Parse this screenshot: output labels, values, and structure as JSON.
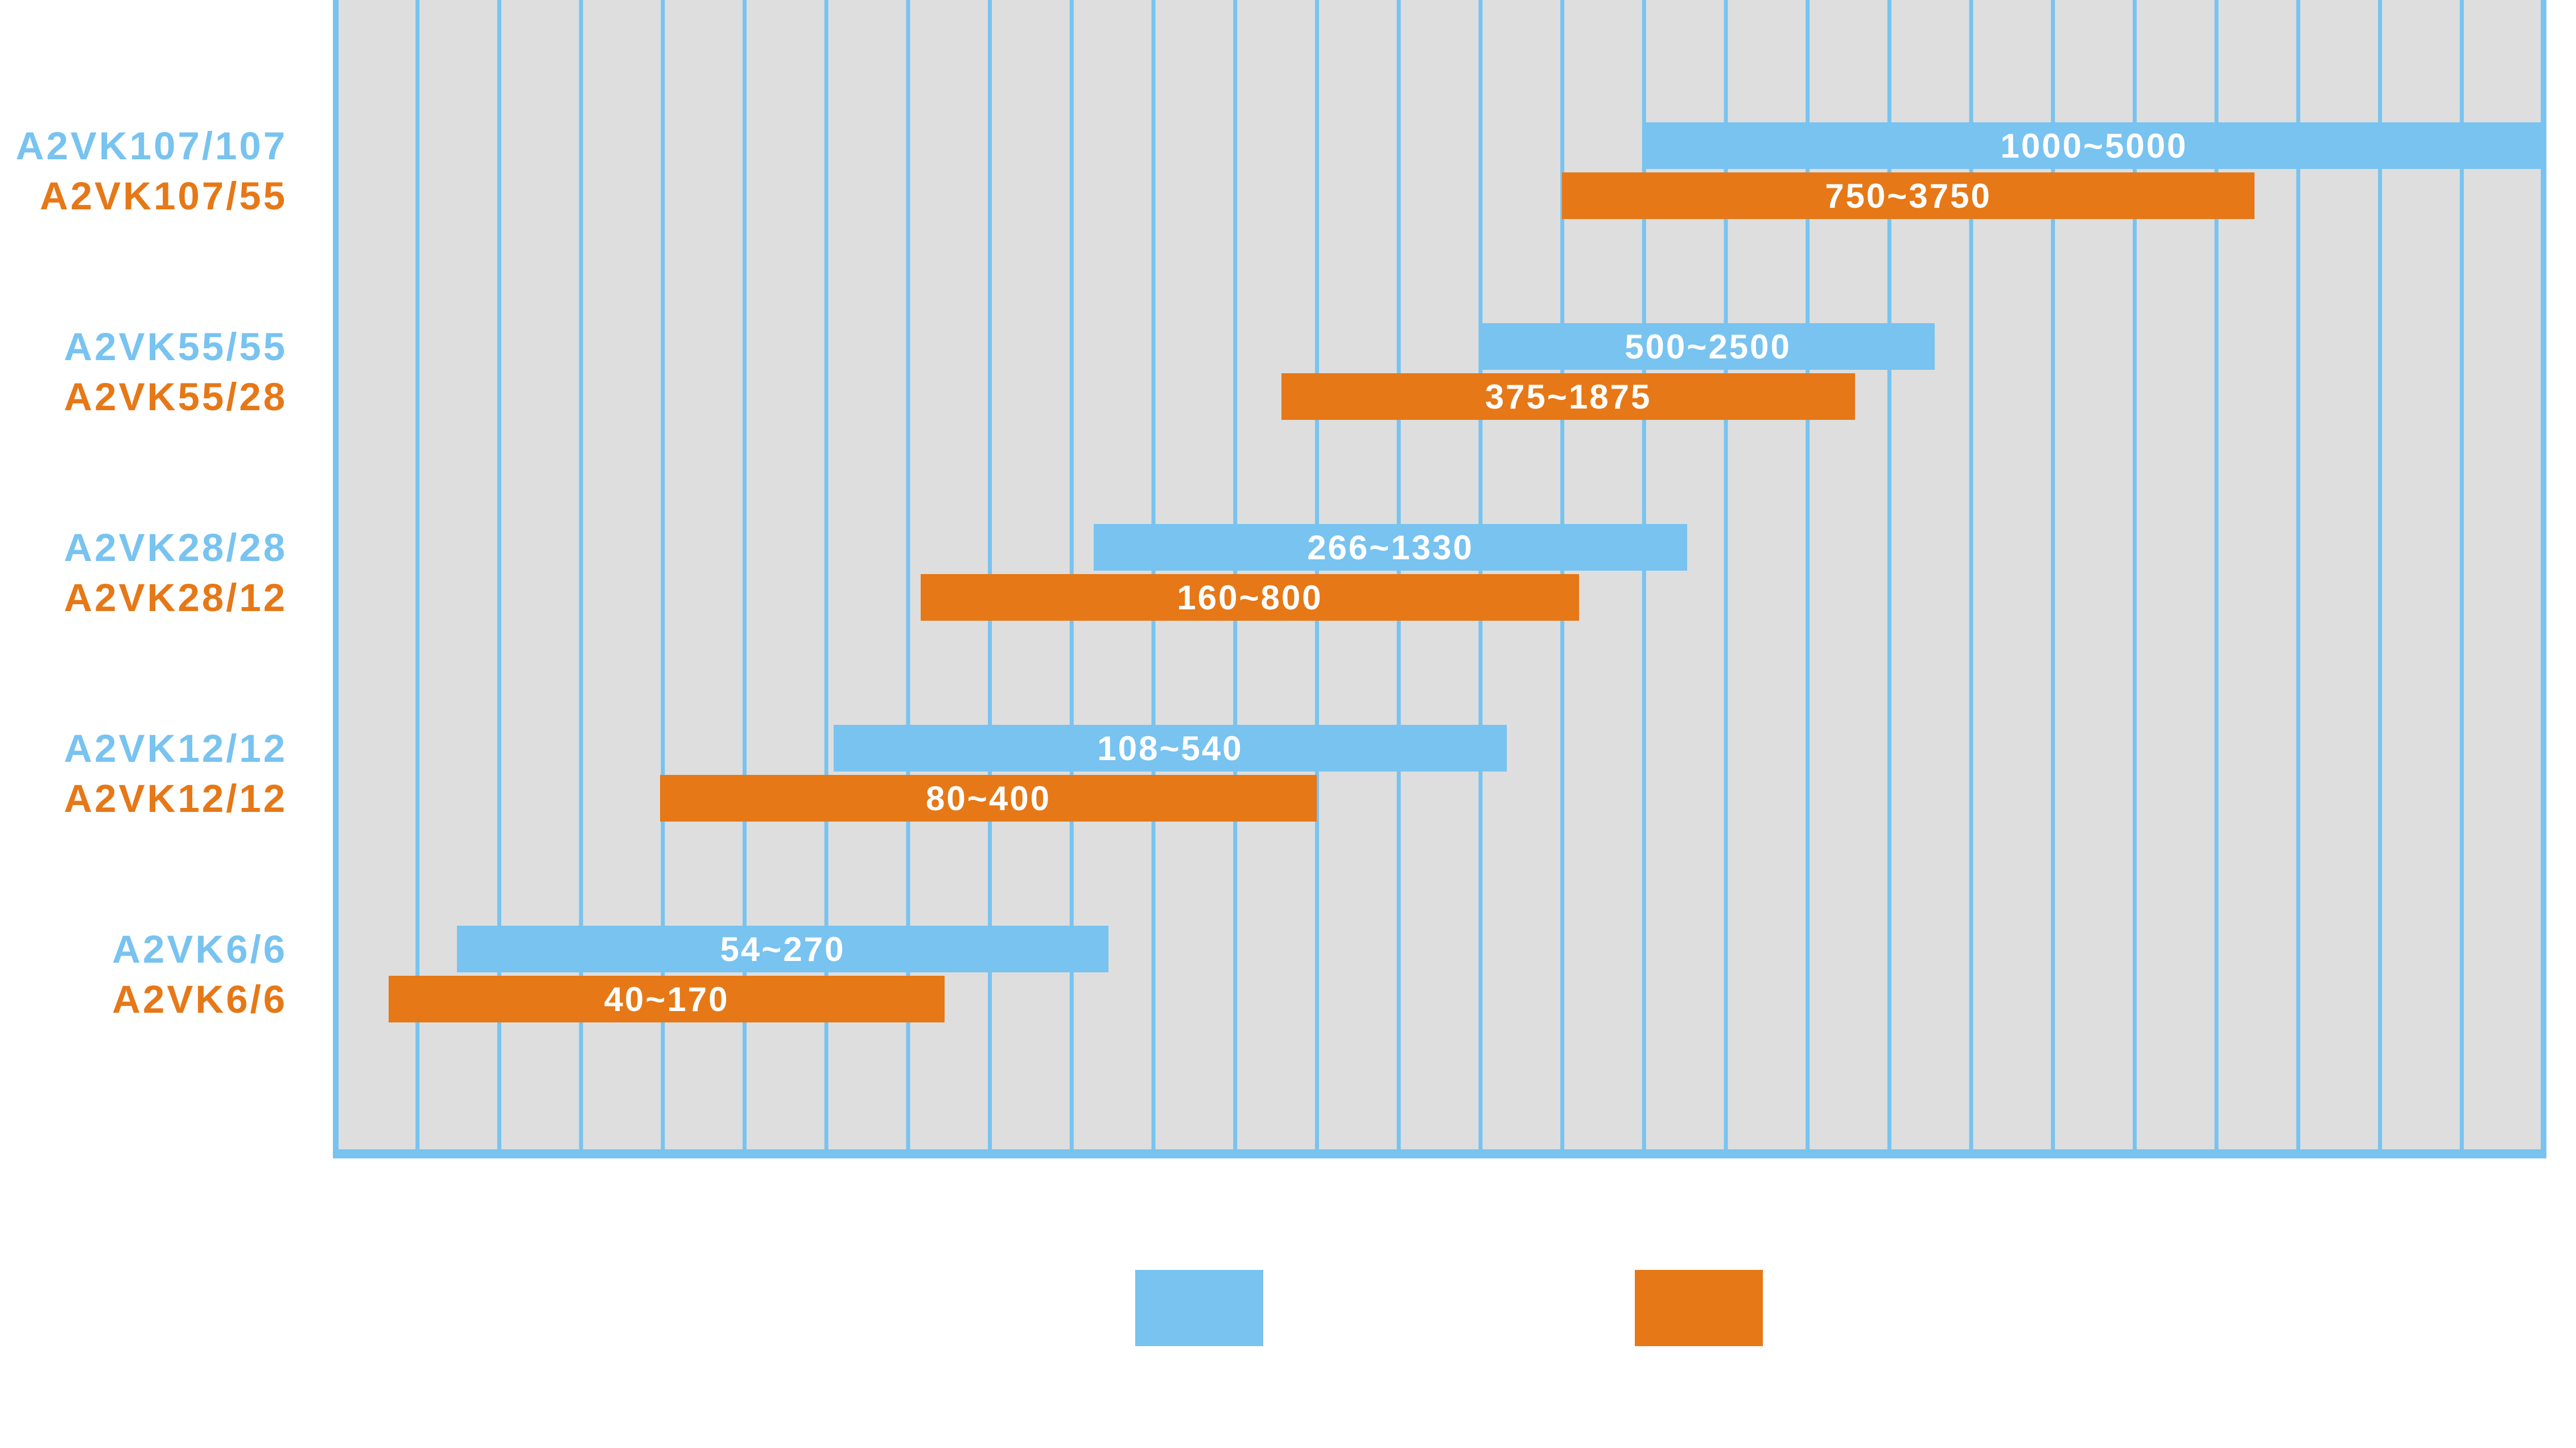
{
  "chart_data": {
    "type": "bar",
    "orientation": "horizontal-range",
    "grid": true,
    "colors": {
      "blue": "#78C3F0",
      "orange": "#E67817",
      "plot_background": "#DEDEDE",
      "grid_line": "#78C3F0"
    },
    "legend": {
      "placement": "bottom-center",
      "entries": [
        {
          "color": "#78C3F0",
          "label": ""
        },
        {
          "color": "#E67817",
          "label": ""
        }
      ]
    },
    "groups": [
      {
        "rows": [
          {
            "label": "A2VK107/107",
            "color": "#78C3F0",
            "start": 1000,
            "end": 5000,
            "text": "1000~5000"
          },
          {
            "label": "A2VK107/55",
            "color": "#E67817",
            "start": 750,
            "end": 3750,
            "text": "750~3750"
          }
        ]
      },
      {
        "rows": [
          {
            "label": "A2VK55/55",
            "color": "#78C3F0",
            "start": 500,
            "end": 2500,
            "text": "500~2500"
          },
          {
            "label": "A2VK55/28",
            "color": "#E67817",
            "start": 375,
            "end": 1875,
            "text": "375~1875"
          }
        ]
      },
      {
        "rows": [
          {
            "label": "A2VK28/28",
            "color": "#78C3F0",
            "start": 266,
            "end": 1330,
            "text": "266~1330"
          },
          {
            "label": "A2VK28/12",
            "color": "#E67817",
            "start": 160,
            "end": 800,
            "text": "160~800"
          }
        ]
      },
      {
        "rows": [
          {
            "label": "A2VK12/12",
            "color": "#78C3F0",
            "start": 108,
            "end": 540,
            "text": "108~540"
          },
          {
            "label": "A2VK12/12",
            "color": "#E67817",
            "start": 80,
            "end": 400,
            "text": "80~400"
          }
        ]
      },
      {
        "rows": [
          {
            "label": "A2VK6/6",
            "color": "#78C3F0",
            "start": 54,
            "end": 270,
            "text": "54~270"
          },
          {
            "label": "A2VK6/6",
            "color": "#E67817",
            "start": 40,
            "end": 170,
            "text": "40~170"
          }
        ]
      }
    ]
  }
}
